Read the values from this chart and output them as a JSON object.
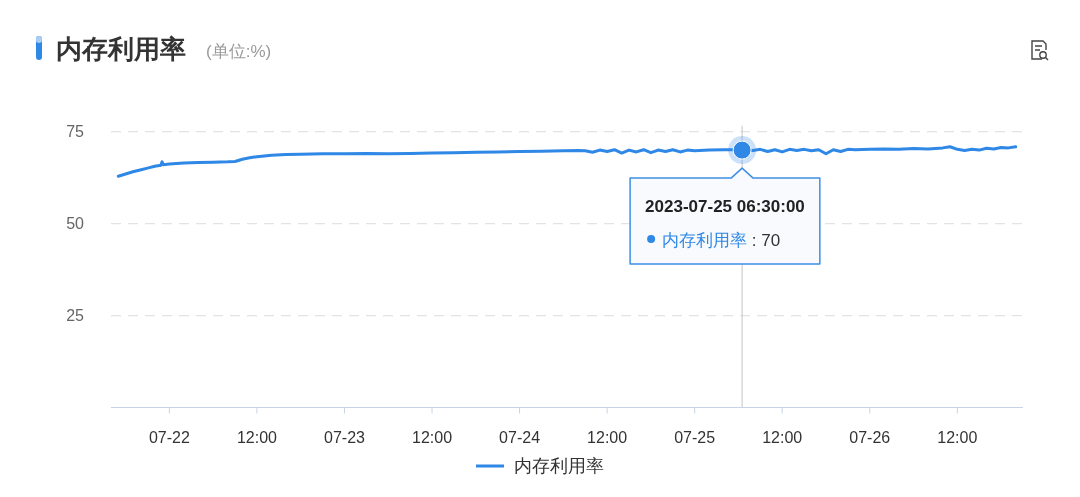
{
  "chart_data": {
    "type": "line",
    "title": "内存利用率",
    "subtitle": "(单位:%)",
    "x": [
      "2023-07-21T17:00",
      "2023-07-21T18:00",
      "2023-07-21T19:00",
      "2023-07-21T20:00",
      "2023-07-21T21:00",
      "2023-07-21T22:00",
      "2023-07-21T22:50",
      "2023-07-21T23:00",
      "2023-07-21T23:10",
      "2023-07-22T00:00",
      "2023-07-22T02:00",
      "2023-07-22T04:00",
      "2023-07-22T06:00",
      "2023-07-22T08:00",
      "2023-07-22T09:00",
      "2023-07-22T10:00",
      "2023-07-22T11:00",
      "2023-07-22T12:00",
      "2023-07-22T14:00",
      "2023-07-22T16:00",
      "2023-07-22T18:00",
      "2023-07-22T21:00",
      "2023-07-23T00:00",
      "2023-07-23T03:00",
      "2023-07-23T06:00",
      "2023-07-23T09:00",
      "2023-07-23T12:00",
      "2023-07-23T15:00",
      "2023-07-23T18:00",
      "2023-07-23T21:00",
      "2023-07-24T00:00",
      "2023-07-24T03:00",
      "2023-07-24T06:00",
      "2023-07-24T08:00",
      "2023-07-24T09:00",
      "2023-07-24T10:00",
      "2023-07-24T11:00",
      "2023-07-24T12:00",
      "2023-07-24T13:00",
      "2023-07-24T14:00",
      "2023-07-24T15:00",
      "2023-07-24T16:00",
      "2023-07-24T17:00",
      "2023-07-24T18:00",
      "2023-07-24T19:00",
      "2023-07-24T20:00",
      "2023-07-24T21:00",
      "2023-07-24T22:00",
      "2023-07-24T23:00",
      "2023-07-25T00:00",
      "2023-07-25T02:00",
      "2023-07-25T04:00",
      "2023-07-25T06:00",
      "2023-07-25T06:30",
      "2023-07-25T07:00",
      "2023-07-25T08:00",
      "2023-07-25T09:00",
      "2023-07-25T10:00",
      "2023-07-25T11:00",
      "2023-07-25T12:00",
      "2023-07-25T13:00",
      "2023-07-25T14:00",
      "2023-07-25T15:00",
      "2023-07-25T16:00",
      "2023-07-25T17:00",
      "2023-07-25T18:00",
      "2023-07-25T19:00",
      "2023-07-25T20:00",
      "2023-07-25T21:00",
      "2023-07-25T22:00",
      "2023-07-26T00:00",
      "2023-07-26T02:00",
      "2023-07-26T04:00",
      "2023-07-26T06:00",
      "2023-07-26T08:00",
      "2023-07-26T10:00",
      "2023-07-26T11:00",
      "2023-07-26T12:00",
      "2023-07-26T13:00",
      "2023-07-26T14:00",
      "2023-07-26T15:00",
      "2023-07-26T16:00",
      "2023-07-26T17:00",
      "2023-07-26T18:00",
      "2023-07-26T19:00",
      "2023-07-26T20:00"
    ],
    "series": [
      {
        "name": "内存利用率",
        "color": "#2f87e6",
        "values": [
          62.9,
          63.5,
          64.1,
          64.6,
          65.1,
          65.6,
          65.9,
          66.8,
          66.0,
          66.2,
          66.5,
          66.6,
          66.7,
          66.8,
          66.9,
          67.5,
          67.9,
          68.2,
          68.6,
          68.8,
          68.9,
          69.0,
          69.0,
          69.1,
          69.0,
          69.1,
          69.2,
          69.3,
          69.4,
          69.5,
          69.6,
          69.7,
          69.8,
          69.9,
          69.8,
          69.4,
          70.0,
          69.6,
          70.1,
          69.2,
          70.0,
          69.5,
          70.1,
          69.3,
          70.0,
          69.6,
          70.1,
          69.5,
          70.0,
          69.8,
          70.0,
          70.1,
          70.1,
          70,
          70.1,
          69.9,
          70.2,
          69.6,
          70.1,
          69.5,
          70.2,
          69.9,
          70.2,
          69.8,
          70.1,
          69.0,
          70.1,
          69.6,
          70.2,
          70.1,
          70.2,
          70.3,
          70.2,
          70.4,
          70.3,
          70.6,
          70.9,
          70.2,
          69.9,
          70.2,
          70.0,
          70.5,
          70.3,
          70.7,
          70.6,
          70.9
        ]
      }
    ],
    "xlim": [
      "2023-07-21T16:00",
      "2023-07-26T21:00"
    ],
    "xticks": [
      {
        "value": "2023-07-22T00:00",
        "label": "07-22"
      },
      {
        "value": "2023-07-22T12:00",
        "label": "12:00"
      },
      {
        "value": "2023-07-23T00:00",
        "label": "07-23"
      },
      {
        "value": "2023-07-23T12:00",
        "label": "12:00"
      },
      {
        "value": "2023-07-24T00:00",
        "label": "07-24"
      },
      {
        "value": "2023-07-24T12:00",
        "label": "12:00"
      },
      {
        "value": "2023-07-25T00:00",
        "label": "07-25"
      },
      {
        "value": "2023-07-25T12:00",
        "label": "12:00"
      },
      {
        "value": "2023-07-26T00:00",
        "label": "07-26"
      },
      {
        "value": "2023-07-26T12:00",
        "label": "12:00"
      }
    ],
    "ylim": [
      0,
      75
    ],
    "yticks": [
      25,
      50,
      75
    ],
    "grid": "y",
    "legend": "bottom",
    "ref_lines": [
      {
        "axis": "x",
        "value": "2023-07-25T06:30",
        "color": "#c4c4c4"
      }
    ],
    "annotations": [
      {
        "text": "2023-07-25 06:30:00",
        "x": "2023-07-25T06:30",
        "y": 70
      },
      "内存利用率 : 70"
    ]
  }
}
